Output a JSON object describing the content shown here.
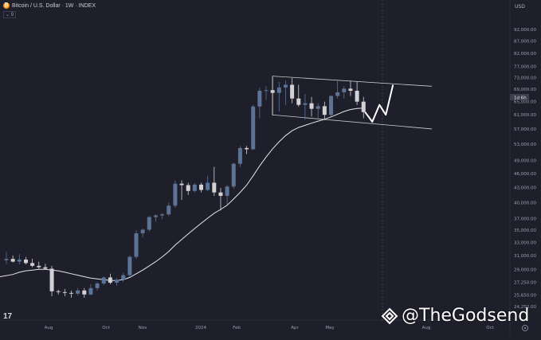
{
  "header": {
    "symbol_icon": "bitcoin-logo",
    "title": "Bitcoin / U.S. Dollar · 1W · INDEX",
    "indicator_toggle": "9"
  },
  "price_scale": {
    "currency": "USD",
    "current_price_label": "1d 6h"
  },
  "watermark": {
    "text": "@TheGodsend",
    "icon": "diamond-logo"
  },
  "chart_data": {
    "type": "candlestick",
    "title": "Bitcoin / U.S. Dollar · 1W · INDEX",
    "y_axis_labels": [
      "92,000.00",
      "87,000.00",
      "82,000.00",
      "77,000.00",
      "73,000.00",
      "69,000.00",
      "65,000.00",
      "61,000.00",
      "57,000.00",
      "53,000.00",
      "49,000.00",
      "46,000.00",
      "43,000.00",
      "40,000.00",
      "37,000.00",
      "35,000.00",
      "33,000.00",
      "31,000.00",
      "29,000.00",
      "27,250.00",
      "25,650.00",
      "24,250.00"
    ],
    "x_axis_labels": [
      "Aug",
      "Oct",
      "Nov",
      "2024",
      "Feb",
      "Apr",
      "May",
      "Aug",
      "Oct"
    ],
    "scale": "log",
    "grid": false,
    "colors": {
      "up": "#5b7396",
      "down": "#d1d1d6",
      "moving_average": "#e6e6e6",
      "channel": "#cccccc",
      "projection": "#ffffff",
      "background": "#1e1f2a"
    },
    "candles": [
      {
        "o": 30300,
        "h": 31500,
        "l": 29800,
        "c": 30500
      },
      {
        "o": 30500,
        "h": 31000,
        "l": 30000,
        "c": 30100
      },
      {
        "o": 30100,
        "h": 31200,
        "l": 29700,
        "c": 30400
      },
      {
        "o": 30400,
        "h": 30800,
        "l": 29700,
        "c": 29900
      },
      {
        "o": 29900,
        "h": 30500,
        "l": 29300,
        "c": 29500
      },
      {
        "o": 29500,
        "h": 30100,
        "l": 29100,
        "c": 29300
      },
      {
        "o": 29300,
        "h": 29800,
        "l": 29000,
        "c": 29100
      },
      {
        "o": 29100,
        "h": 29500,
        "l": 25500,
        "c": 26100
      },
      {
        "o": 26100,
        "h": 26300,
        "l": 25700,
        "c": 26000
      },
      {
        "o": 26000,
        "h": 26400,
        "l": 25500,
        "c": 25900
      },
      {
        "o": 25900,
        "h": 26200,
        "l": 25300,
        "c": 25800
      },
      {
        "o": 25800,
        "h": 26500,
        "l": 25600,
        "c": 26200
      },
      {
        "o": 26200,
        "h": 26500,
        "l": 25300,
        "c": 25700
      },
      {
        "o": 25700,
        "h": 27000,
        "l": 25600,
        "c": 26500
      },
      {
        "o": 26500,
        "h": 27300,
        "l": 26200,
        "c": 27100
      },
      {
        "o": 27100,
        "h": 28000,
        "l": 26900,
        "c": 27900
      },
      {
        "o": 27900,
        "h": 28400,
        "l": 27000,
        "c": 27200
      },
      {
        "o": 27200,
        "h": 27800,
        "l": 26800,
        "c": 27600
      },
      {
        "o": 27600,
        "h": 28500,
        "l": 27300,
        "c": 28200
      },
      {
        "o": 28200,
        "h": 31000,
        "l": 28000,
        "c": 30800
      },
      {
        "o": 30800,
        "h": 35000,
        "l": 30500,
        "c": 34500
      },
      {
        "o": 34500,
        "h": 35300,
        "l": 33800,
        "c": 35100
      },
      {
        "o": 35100,
        "h": 37500,
        "l": 34800,
        "c": 37300
      },
      {
        "o": 37300,
        "h": 37800,
        "l": 36500,
        "c": 37600
      },
      {
        "o": 37600,
        "h": 38000,
        "l": 36900,
        "c": 37800
      },
      {
        "o": 37800,
        "h": 40000,
        "l": 37500,
        "c": 39400
      },
      {
        "o": 39400,
        "h": 44500,
        "l": 39000,
        "c": 43800
      },
      {
        "o": 43800,
        "h": 44500,
        "l": 40500,
        "c": 43500
      },
      {
        "o": 43500,
        "h": 44000,
        "l": 41500,
        "c": 42300
      },
      {
        "o": 42300,
        "h": 43900,
        "l": 42000,
        "c": 43600
      },
      {
        "o": 43600,
        "h": 44000,
        "l": 42000,
        "c": 42500
      },
      {
        "o": 42500,
        "h": 45500,
        "l": 42300,
        "c": 44000
      },
      {
        "o": 44000,
        "h": 47500,
        "l": 41300,
        "c": 42000
      },
      {
        "o": 42000,
        "h": 42900,
        "l": 38500,
        "c": 41300
      },
      {
        "o": 41300,
        "h": 43500,
        "l": 39500,
        "c": 43200
      },
      {
        "o": 43200,
        "h": 48500,
        "l": 42800,
        "c": 48200
      },
      {
        "o": 48200,
        "h": 52500,
        "l": 47500,
        "c": 52000
      },
      {
        "o": 52000,
        "h": 52500,
        "l": 50500,
        "c": 51700
      },
      {
        "o": 51700,
        "h": 64000,
        "l": 51500,
        "c": 63500
      },
      {
        "o": 63500,
        "h": 69500,
        "l": 60000,
        "c": 68500
      },
      {
        "o": 68500,
        "h": 70000,
        "l": 65500,
        "c": 68700
      },
      {
        "o": 68700,
        "h": 73500,
        "l": 60800,
        "c": 67800
      },
      {
        "o": 67800,
        "h": 71500,
        "l": 62000,
        "c": 69600
      },
      {
        "o": 69600,
        "h": 72000,
        "l": 64000,
        "c": 70500
      },
      {
        "o": 70500,
        "h": 72800,
        "l": 64500,
        "c": 66000
      },
      {
        "o": 66000,
        "h": 70500,
        "l": 63500,
        "c": 64000
      },
      {
        "o": 64000,
        "h": 67500,
        "l": 59600,
        "c": 64500
      },
      {
        "o": 64500,
        "h": 66500,
        "l": 60500,
        "c": 62800
      },
      {
        "o": 62800,
        "h": 64500,
        "l": 60000,
        "c": 63600
      },
      {
        "o": 63600,
        "h": 65000,
        "l": 59500,
        "c": 61000
      },
      {
        "o": 61000,
        "h": 67000,
        "l": 60500,
        "c": 66800
      },
      {
        "o": 66800,
        "h": 71800,
        "l": 66000,
        "c": 68000
      },
      {
        "o": 68000,
        "h": 70000,
        "l": 66000,
        "c": 69200
      },
      {
        "o": 69200,
        "h": 71900,
        "l": 66800,
        "c": 68500
      },
      {
        "o": 68500,
        "h": 71500,
        "l": 64000,
        "c": 65000
      },
      {
        "o": 65000,
        "h": 66500,
        "l": 60000,
        "c": 61800
      }
    ],
    "moving_average": [
      28000,
      28300,
      28600,
      28800,
      28900,
      29000,
      29000,
      28900,
      28800,
      28600,
      28400,
      28200,
      28000,
      27800,
      27700,
      27600,
      27500,
      27500,
      27600,
      27900,
      28400,
      28900,
      29500,
      30100,
      30800,
      31600,
      32600,
      33500,
      34400,
      35300,
      36200,
      37100,
      38000,
      38700,
      39500,
      40700,
      42000,
      43500,
      45500,
      47700,
      49800,
      51800,
      53600,
      55200,
      56500,
      57400,
      58000,
      58600,
      59200,
      59700,
      60400,
      61200,
      62000,
      62600,
      62900,
      63000
    ],
    "channel_upper": [
      [
        73500,
        "2024-03"
      ],
      [
        70000,
        "2024-08"
      ]
    ],
    "channel_lower": [
      [
        61000,
        "2024-03"
      ],
      [
        57000,
        "2024-08"
      ]
    ],
    "projection_path": [
      61800,
      59000,
      64000,
      61000,
      70500
    ]
  }
}
